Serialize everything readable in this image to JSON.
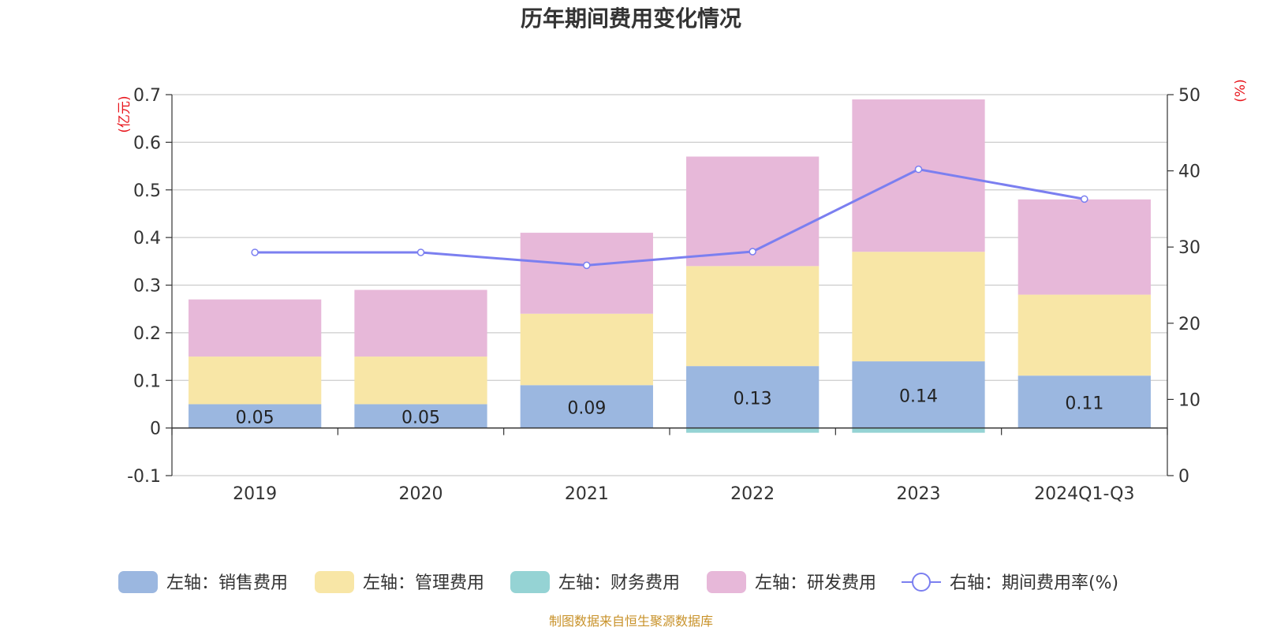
{
  "chart_data": {
    "type": "bar",
    "title": "历年期间费用变化情况",
    "categories": [
      "2019",
      "2020",
      "2021",
      "2022",
      "2023",
      "2024Q1-Q3"
    ],
    "left_axis": {
      "unit": "(亿元)",
      "ylim": [
        -0.1,
        0.7
      ],
      "ticks": [
        -0.1,
        0,
        0.1,
        0.2,
        0.3,
        0.4,
        0.5,
        0.6,
        0.7
      ],
      "tick_labels": [
        "-0.1",
        "0",
        "0.1",
        "0.2",
        "0.3",
        "0.4",
        "0.5",
        "0.6",
        "0.7"
      ]
    },
    "right_axis": {
      "unit": "(%)",
      "ylim": [
        0,
        50
      ],
      "ticks": [
        0,
        10,
        20,
        30,
        40,
        50
      ],
      "tick_labels": [
        "0",
        "10",
        "20",
        "30",
        "40",
        "50"
      ]
    },
    "series": [
      {
        "name": "左轴：销售费用",
        "kind": "bar",
        "axis": "left",
        "color": "#9bb7e0",
        "values": [
          0.05,
          0.05,
          0.09,
          0.13,
          0.14,
          0.11
        ],
        "labels": [
          "0.05",
          "0.05",
          "0.09",
          "0.13",
          "0.14",
          "0.11"
        ]
      },
      {
        "name": "左轴：管理费用",
        "kind": "bar",
        "axis": "left",
        "color": "#f8e6a6",
        "values": [
          0.1,
          0.1,
          0.15,
          0.21,
          0.23,
          0.17
        ]
      },
      {
        "name": "左轴：财务费用",
        "kind": "bar",
        "axis": "left",
        "color": "#95d3d4",
        "values": [
          0.0,
          0.0,
          0.0,
          -0.01,
          -0.01,
          0.0
        ]
      },
      {
        "name": "左轴：研发费用",
        "kind": "bar",
        "axis": "left",
        "color": "#e7b8d9",
        "values": [
          0.12,
          0.14,
          0.17,
          0.23,
          0.32,
          0.2
        ]
      },
      {
        "name": "右轴：期间费用率(%)",
        "kind": "line",
        "axis": "right",
        "color": "#7b7ff0",
        "values": [
          29.3,
          29.3,
          27.6,
          29.4,
          40.2,
          36.3
        ]
      }
    ],
    "grid": true,
    "legend": "bottom"
  },
  "source": "制图数据来自恒生聚源数据库"
}
